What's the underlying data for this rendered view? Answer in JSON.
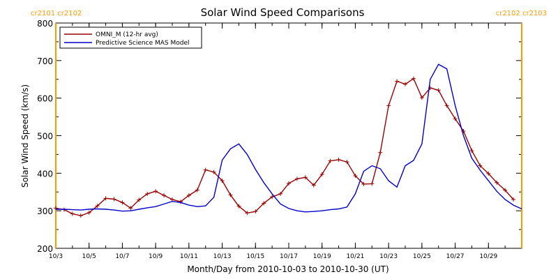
{
  "chart_data": {
    "type": "line",
    "title": "Solar Wind Speed Comparisons",
    "xlabel": "Month/Day from 2010-10-03 to 2010-10-30 (UT)",
    "ylabel": "Solar Wind Speed (km/s)",
    "ylim": [
      200,
      800
    ],
    "yticks": [
      200,
      300,
      400,
      500,
      600,
      700,
      800
    ],
    "xlim": [
      "2010-10-03",
      "2010-10-31"
    ],
    "xtick_labels": [
      {
        "date": "2010-10-03",
        "label": "10/3"
      },
      {
        "date": "2010-10-05",
        "label": "10/5"
      },
      {
        "date": "2010-10-07",
        "label": "10/7"
      },
      {
        "date": "2010-10-09",
        "label": "10/9"
      },
      {
        "date": "2010-10-11",
        "label": "10/11"
      },
      {
        "date": "2010-10-13",
        "label": "10/13"
      },
      {
        "date": "2010-10-15",
        "label": "10/15"
      },
      {
        "date": "2010-10-17",
        "label": "10/17"
      },
      {
        "date": "2010-10-19",
        "label": "10/19"
      },
      {
        "date": "2010-10-21",
        "label": "10/21"
      },
      {
        "date": "2010-10-23",
        "label": "10/23"
      },
      {
        "date": "2010-10-25",
        "label": "10/25"
      },
      {
        "date": "2010-10-27",
        "label": "10/27"
      },
      {
        "date": "2010-10-29",
        "label": "10/29"
      }
    ],
    "grid": false,
    "legend_position": "top-left",
    "carrington_markers": [
      {
        "date": "2010-10-03",
        "label": "cr2101 cr2102",
        "color": "#ff9900",
        "label_anchor": "start"
      },
      {
        "date": "2010-10-31",
        "label": "cr2102 cr2103",
        "color": "#ff9900",
        "label_anchor": "end"
      }
    ],
    "series": [
      {
        "name": "OMNI_M (12-hr avg)",
        "color": "#990000",
        "marker": "plus",
        "x": [
          "2010-10-03 00:00",
          "2010-10-03 12:00",
          "2010-10-04 00:00",
          "2010-10-04 12:00",
          "2010-10-05 00:00",
          "2010-10-05 12:00",
          "2010-10-06 00:00",
          "2010-10-06 12:00",
          "2010-10-07 00:00",
          "2010-10-07 12:00",
          "2010-10-08 00:00",
          "2010-10-08 12:00",
          "2010-10-09 00:00",
          "2010-10-09 12:00",
          "2010-10-10 00:00",
          "2010-10-10 12:00",
          "2010-10-11 00:00",
          "2010-10-11 12:00",
          "2010-10-12 00:00",
          "2010-10-12 12:00",
          "2010-10-13 00:00",
          "2010-10-13 12:00",
          "2010-10-14 00:00",
          "2010-10-14 12:00",
          "2010-10-15 00:00",
          "2010-10-15 12:00",
          "2010-10-16 00:00",
          "2010-10-16 12:00",
          "2010-10-17 00:00",
          "2010-10-17 12:00",
          "2010-10-18 00:00",
          "2010-10-18 12:00",
          "2010-10-19 00:00",
          "2010-10-19 12:00",
          "2010-10-20 00:00",
          "2010-10-20 12:00",
          "2010-10-21 00:00",
          "2010-10-21 12:00",
          "2010-10-22 00:00",
          "2010-10-22 12:00",
          "2010-10-23 00:00",
          "2010-10-23 12:00",
          "2010-10-24 00:00",
          "2010-10-24 12:00",
          "2010-10-25 00:00",
          "2010-10-25 12:00",
          "2010-10-26 00:00",
          "2010-10-26 12:00",
          "2010-10-27 00:00",
          "2010-10-27 12:00",
          "2010-10-28 00:00",
          "2010-10-28 12:00",
          "2010-10-29 00:00",
          "2010-10-29 12:00",
          "2010-10-30 00:00",
          "2010-10-30 12:00"
        ],
        "values": [
          307,
          303,
          292,
          287,
          295,
          313,
          333,
          331,
          322,
          307,
          329,
          345,
          352,
          341,
          330,
          324,
          341,
          355,
          409,
          403,
          380,
          342,
          312,
          294,
          298,
          320,
          337,
          345,
          373,
          385,
          389,
          368,
          397,
          433,
          436,
          430,
          393,
          371,
          372,
          455,
          580,
          645,
          637,
          652,
          601,
          627,
          621,
          580,
          545,
          512,
          460,
          420,
          399,
          375,
          355,
          330
        ]
      },
      {
        "name": "Predictive Science MAS Model",
        "color": "#0000cc",
        "marker": "none",
        "x": [
          "2010-10-03 00:00",
          "2010-10-03 12:00",
          "2010-10-04 00:00",
          "2010-10-04 12:00",
          "2010-10-05 00:00",
          "2010-10-05 12:00",
          "2010-10-06 00:00",
          "2010-10-06 12:00",
          "2010-10-07 00:00",
          "2010-10-07 12:00",
          "2010-10-08 00:00",
          "2010-10-08 12:00",
          "2010-10-09 00:00",
          "2010-10-09 12:00",
          "2010-10-10 00:00",
          "2010-10-10 12:00",
          "2010-10-11 00:00",
          "2010-10-11 12:00",
          "2010-10-12 00:00",
          "2010-10-12 12:00",
          "2010-10-13 00:00",
          "2010-10-13 12:00",
          "2010-10-14 00:00",
          "2010-10-14 12:00",
          "2010-10-15 00:00",
          "2010-10-15 12:00",
          "2010-10-16 00:00",
          "2010-10-16 12:00",
          "2010-10-17 00:00",
          "2010-10-17 12:00",
          "2010-10-18 00:00",
          "2010-10-18 12:00",
          "2010-10-19 00:00",
          "2010-10-19 12:00",
          "2010-10-20 00:00",
          "2010-10-20 12:00",
          "2010-10-21 00:00",
          "2010-10-21 12:00",
          "2010-10-22 00:00",
          "2010-10-22 12:00",
          "2010-10-23 00:00",
          "2010-10-23 12:00",
          "2010-10-24 00:00",
          "2010-10-24 12:00",
          "2010-10-25 00:00",
          "2010-10-25 12:00",
          "2010-10-26 00:00",
          "2010-10-26 12:00",
          "2010-10-27 00:00",
          "2010-10-27 12:00",
          "2010-10-28 00:00",
          "2010-10-28 12:00",
          "2010-10-29 00:00",
          "2010-10-29 12:00",
          "2010-10-30 00:00",
          "2010-10-30 12:00",
          "2010-10-31 00:00"
        ],
        "values": [
          304,
          304,
          303,
          302,
          304,
          305,
          304,
          302,
          299,
          300,
          304,
          308,
          311,
          318,
          325,
          322,
          315,
          311,
          313,
          336,
          435,
          465,
          478,
          450,
          410,
          375,
          345,
          318,
          306,
          300,
          297,
          298,
          300,
          303,
          305,
          310,
          345,
          405,
          420,
          412,
          380,
          363,
          420,
          434,
          478,
          650,
          690,
          678,
          580,
          500,
          440,
          408,
          380,
          352,
          330,
          315,
          305
        ]
      }
    ]
  }
}
